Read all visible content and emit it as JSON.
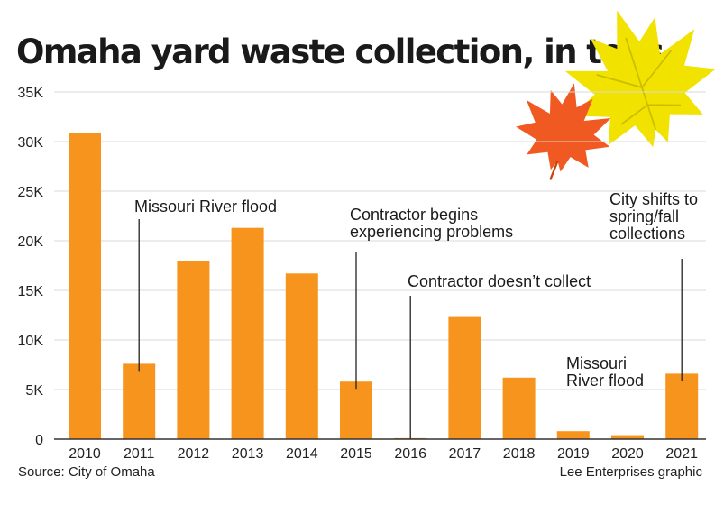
{
  "chart_data": {
    "type": "bar",
    "title": "Omaha yard waste collection, in tons",
    "categories": [
      "2010",
      "2011",
      "2012",
      "2013",
      "2014",
      "2015",
      "2016",
      "2017",
      "2018",
      "2019",
      "2020",
      "2021"
    ],
    "values": [
      30900,
      7600,
      18000,
      21300,
      16700,
      5800,
      100,
      12400,
      6200,
      800,
      400,
      6600
    ],
    "ylim": [
      0,
      35000
    ],
    "yticks": [
      0,
      5000,
      10000,
      15000,
      20000,
      25000,
      30000,
      35000
    ],
    "ytick_labels": [
      "0",
      "5K",
      "10K",
      "15K",
      "20K",
      "25K",
      "30K",
      "35K"
    ],
    "grid": true,
    "bar_color": "#f7941d",
    "annotations": [
      {
        "category": "2011",
        "lines": [
          "Missouri River flood"
        ]
      },
      {
        "category": "2015",
        "lines": [
          "Contractor begins",
          "experiencing problems"
        ]
      },
      {
        "category": "2016",
        "lines": [
          "Contractor doesn’t collect"
        ]
      },
      {
        "category": "2019",
        "lines": [
          "Missouri",
          "River flood"
        ]
      },
      {
        "category": "2021",
        "lines": [
          "City shifts to",
          "spring/fall",
          "collections"
        ]
      }
    ]
  },
  "source": "Source: City of Omaha",
  "credit": "Lee Enterprises graphic",
  "decoration": {
    "leaf_colors": [
      "#f2e200",
      "#f05a22"
    ],
    "grid_color": "#d8d8d8",
    "axis_color": "#333333"
  }
}
